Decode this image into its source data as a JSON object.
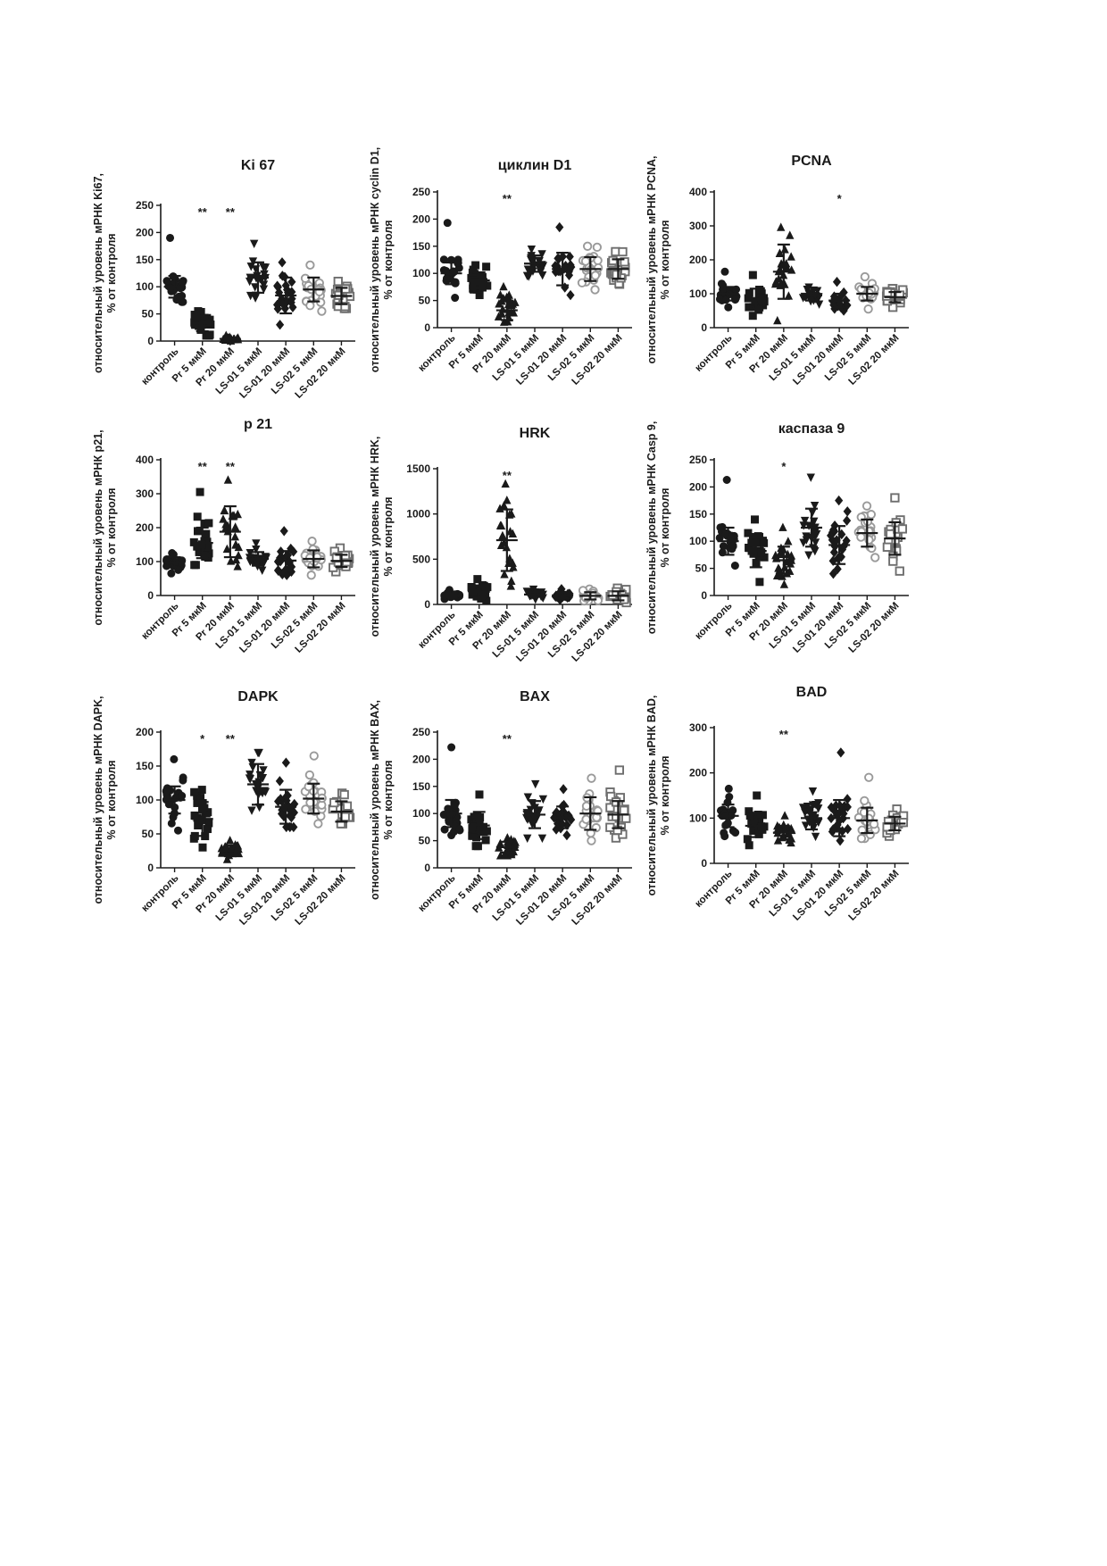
{
  "chart_data": [
    {
      "type": "scatter",
      "title": "Ki 67",
      "ylabel": [
        "относительный уровень мРНК Ki67,",
        "% от контроля"
      ],
      "categories": [
        "контроль",
        "Pr 5 мкМ",
        "Pr 20 мкМ",
        "LS-01 5 мкМ",
        "LS-01 20 мкМ",
        "LS-02 5 мкМ",
        "LS-02 20 мкМ"
      ],
      "ylim": [
        0,
        250
      ],
      "yticks": [
        0,
        50,
        100,
        150,
        200,
        250
      ],
      "series": [
        {
          "mean": 100,
          "sd": 20,
          "min": 72,
          "max": 190
        },
        {
          "mean": 32,
          "sd": 14,
          "min": 10,
          "max": 55
        },
        {
          "mean": 4,
          "sd": 2,
          "min": 0,
          "max": 10
        },
        {
          "mean": 117,
          "sd": 28,
          "min": 80,
          "max": 180
        },
        {
          "mean": 84,
          "sd": 33,
          "min": 30,
          "max": 145
        },
        {
          "mean": 95,
          "sd": 22,
          "min": 55,
          "max": 140
        },
        {
          "mean": 83,
          "sd": 15,
          "min": 60,
          "max": 110
        }
      ],
      "significance": [
        "",
        "**",
        "**",
        "",
        "",
        "",
        ""
      ]
    },
    {
      "type": "scatter",
      "title": "циклин D1",
      "ylabel": [
        "относительный уровень мРНК cyclin D1,",
        "% от контроля"
      ],
      "categories": [
        "контроль",
        "Pr 5 мкМ",
        "Pr 20 мкМ",
        "LS-01 5 мкМ",
        "LS-01 20 мкМ",
        "LS-02 5 мкМ",
        "LS-02 20 мкМ"
      ],
      "ylim": [
        0,
        250
      ],
      "yticks": [
        0,
        50,
        100,
        150,
        200,
        250
      ],
      "series": [
        {
          "mean": 100,
          "sd": 20,
          "min": 55,
          "max": 193
        },
        {
          "mean": 87,
          "sd": 15,
          "min": 60,
          "max": 115
        },
        {
          "mean": 32,
          "sd": 18,
          "min": 10,
          "max": 75
        },
        {
          "mean": 118,
          "sd": 15,
          "min": 95,
          "max": 145
        },
        {
          "mean": 108,
          "sd": 30,
          "min": 60,
          "max": 185
        },
        {
          "mean": 108,
          "sd": 22,
          "min": 70,
          "max": 150
        },
        {
          "mean": 108,
          "sd": 18,
          "min": 80,
          "max": 140
        }
      ],
      "significance": [
        "",
        "",
        "**",
        "",
        "",
        "",
        ""
      ]
    },
    {
      "type": "scatter",
      "title": "PCNA",
      "ylabel": [
        "относительный уровень мРНК PCNA,",
        "% от контроля"
      ],
      "categories": [
        "контроль",
        "Pr 5 мкМ",
        "Pr 20 мкМ",
        "LS-01 5 мкМ",
        "LS-01 20 мкМ",
        "LS-02 5 мкМ",
        "LS-02 20 мкМ"
      ],
      "ylim": [
        0,
        400
      ],
      "yticks": [
        0,
        100,
        200,
        300,
        400
      ],
      "series": [
        {
          "mean": 100,
          "sd": 20,
          "min": 60,
          "max": 165
        },
        {
          "mean": 85,
          "sd": 30,
          "min": 35,
          "max": 155
        },
        {
          "mean": 165,
          "sd": 80,
          "min": 20,
          "max": 295
        },
        {
          "mean": 95,
          "sd": 15,
          "min": 70,
          "max": 120
        },
        {
          "mean": 80,
          "sd": 20,
          "min": 50,
          "max": 135
        },
        {
          "mean": 100,
          "sd": 20,
          "min": 55,
          "max": 150
        },
        {
          "mean": 90,
          "sd": 15,
          "min": 60,
          "max": 115
        }
      ],
      "significance": [
        "",
        "",
        "",
        "",
        "*",
        "",
        ""
      ]
    },
    {
      "type": "scatter",
      "title": "p 21",
      "ylabel": [
        "относительный уровень мРНК p21,",
        "% от контроля"
      ],
      "categories": [
        "контроль",
        "Pr 5 мкМ",
        "Pr 20 мкМ",
        "LS-01 5 мкМ",
        "LS-01 20 мкМ",
        "LS-02 5 мкМ",
        "LS-02 20 мкМ"
      ],
      "ylim": [
        0,
        400
      ],
      "yticks": [
        0,
        100,
        200,
        300,
        400
      ],
      "series": [
        {
          "mean": 98,
          "sd": 15,
          "min": 65,
          "max": 125
        },
        {
          "mean": 155,
          "sd": 45,
          "min": 90,
          "max": 305
        },
        {
          "mean": 188,
          "sd": 75,
          "min": 85,
          "max": 340
        },
        {
          "mean": 108,
          "sd": 20,
          "min": 75,
          "max": 155
        },
        {
          "mean": 103,
          "sd": 28,
          "min": 60,
          "max": 190
        },
        {
          "mean": 108,
          "sd": 25,
          "min": 60,
          "max": 160
        },
        {
          "mean": 102,
          "sd": 18,
          "min": 70,
          "max": 140
        }
      ],
      "significance": [
        "",
        "**",
        "**",
        "",
        "",
        "",
        ""
      ]
    },
    {
      "type": "scatter",
      "title": "HRK",
      "ylabel": [
        "относительный уровень мРНК HRK,",
        "% от контроля"
      ],
      "categories": [
        "контроль",
        "Pr 5 мкМ",
        "Pr 20 мкМ",
        "LS-01 5 мкМ",
        "LS-01 20 мкМ",
        "LS-02 5 мкМ",
        "LS-02 20 мкМ"
      ],
      "ylim": [
        0,
        1500
      ],
      "yticks": [
        0,
        500,
        1000,
        1500
      ],
      "series": [
        {
          "mean": 100,
          "sd": 20,
          "min": 60,
          "max": 160
        },
        {
          "mean": 140,
          "sd": 60,
          "min": 40,
          "max": 280
        },
        {
          "mean": 710,
          "sd": 340,
          "min": 200,
          "max": 1330
        },
        {
          "mean": 110,
          "sd": 25,
          "min": 60,
          "max": 170
        },
        {
          "mean": 100,
          "sd": 30,
          "min": 50,
          "max": 170
        },
        {
          "mean": 95,
          "sd": 40,
          "min": 40,
          "max": 170
        },
        {
          "mean": 95,
          "sd": 50,
          "min": 20,
          "max": 180
        }
      ],
      "significance": [
        "",
        "",
        "**",
        "",
        "",
        "",
        ""
      ]
    },
    {
      "type": "scatter",
      "title": "каспаза 9",
      "ylabel": [
        "относительный уровень мРНК Casp 9,",
        "% от контроля"
      ],
      "categories": [
        "контроль",
        "Pr 5 мкМ",
        "Pr 20 мкМ",
        "LS-01 5 мкМ",
        "LS-01 20 мкМ",
        "LS-02 5 мкМ",
        "LS-02 20 мкМ"
      ],
      "ylim": [
        0,
        250
      ],
      "yticks": [
        0,
        50,
        100,
        150,
        200,
        250
      ],
      "series": [
        {
          "mean": 100,
          "sd": 25,
          "min": 55,
          "max": 213
        },
        {
          "mean": 82,
          "sd": 30,
          "min": 25,
          "max": 140
        },
        {
          "mean": 65,
          "sd": 25,
          "min": 20,
          "max": 125
        },
        {
          "mean": 125,
          "sd": 35,
          "min": 75,
          "max": 218
        },
        {
          "mean": 93,
          "sd": 35,
          "min": 40,
          "max": 175
        },
        {
          "mean": 115,
          "sd": 25,
          "min": 70,
          "max": 165
        },
        {
          "mean": 105,
          "sd": 30,
          "min": 45,
          "max": 180
        }
      ],
      "significance": [
        "",
        "",
        "*",
        "",
        "",
        "",
        ""
      ]
    },
    {
      "type": "scatter",
      "title": "DAPK",
      "ylabel": [
        "относительный уровень мРНК DAPK,",
        "% от контроля"
      ],
      "categories": [
        "контроль",
        "Pr 5 мкМ",
        "Pr 20 мкМ",
        "LS-01 5 мкМ",
        "LS-01 20 мкМ",
        "LS-02 5 мкМ",
        "LS-02 20 мкМ"
      ],
      "ylim": [
        0,
        200
      ],
      "yticks": [
        0,
        50,
        100,
        150,
        200
      ],
      "series": [
        {
          "mean": 100,
          "sd": 20,
          "min": 55,
          "max": 160
        },
        {
          "mean": 72,
          "sd": 25,
          "min": 30,
          "max": 115
        },
        {
          "mean": 25,
          "sd": 8,
          "min": 12,
          "max": 40
        },
        {
          "mean": 123,
          "sd": 30,
          "min": 85,
          "max": 170
        },
        {
          "mean": 90,
          "sd": 25,
          "min": 60,
          "max": 155
        },
        {
          "mean": 102,
          "sd": 22,
          "min": 65,
          "max": 165
        },
        {
          "mean": 83,
          "sd": 15,
          "min": 65,
          "max": 110
        }
      ],
      "significance": [
        "",
        "*",
        "**",
        "",
        "",
        "",
        ""
      ]
    },
    {
      "type": "scatter",
      "title": "BAX",
      "ylabel": [
        "относительный уровень мРНК BAX,",
        "% от контроля"
      ],
      "categories": [
        "контроль",
        "Pr 5 мкМ",
        "Pr 20 мкМ",
        "LS-01 5 мкМ",
        "LS-01 20 мкМ",
        "LS-02 5 мкМ",
        "LS-02 20 мкМ"
      ],
      "ylim": [
        0,
        250
      ],
      "yticks": [
        0,
        50,
        100,
        150,
        200,
        250
      ],
      "series": [
        {
          "mean": 100,
          "sd": 25,
          "min": 60,
          "max": 222
        },
        {
          "mean": 78,
          "sd": 25,
          "min": 40,
          "max": 135
        },
        {
          "mean": 38,
          "sd": 10,
          "min": 22,
          "max": 55
        },
        {
          "mean": 98,
          "sd": 25,
          "min": 55,
          "max": 155
        },
        {
          "mean": 93,
          "sd": 20,
          "min": 60,
          "max": 145
        },
        {
          "mean": 100,
          "sd": 30,
          "min": 50,
          "max": 165
        },
        {
          "mean": 98,
          "sd": 25,
          "min": 55,
          "max": 180
        }
      ],
      "significance": [
        "",
        "",
        "**",
        "",
        "",
        "",
        ""
      ]
    },
    {
      "type": "scatter",
      "title": "BAD",
      "ylabel": [
        "относительный уровень мРНК BAD,",
        "% от контроля"
      ],
      "categories": [
        "контроль",
        "Pr 5 мкМ",
        "Pr 20 мкМ",
        "LS-01 5 мкМ",
        "LS-01 20 мкМ",
        "LS-02 5 мкМ",
        "LS-02 20 мкМ"
      ],
      "ylim": [
        0,
        300
      ],
      "yticks": [
        0,
        100,
        200,
        300
      ],
      "series": [
        {
          "mean": 105,
          "sd": 25,
          "min": 60,
          "max": 165
        },
        {
          "mean": 83,
          "sd": 25,
          "min": 40,
          "max": 150
        },
        {
          "mean": 68,
          "sd": 15,
          "min": 45,
          "max": 105
        },
        {
          "mean": 100,
          "sd": 25,
          "min": 60,
          "max": 160
        },
        {
          "mean": 100,
          "sd": 40,
          "min": 50,
          "max": 245
        },
        {
          "mean": 95,
          "sd": 28,
          "min": 55,
          "max": 190
        },
        {
          "mean": 88,
          "sd": 15,
          "min": 60,
          "max": 120
        }
      ],
      "significance": [
        "",
        "",
        "**",
        "",
        "",
        "",
        ""
      ]
    }
  ],
  "series_style": [
    {
      "marker": "circle",
      "color": "#1a1a1a",
      "filled": true
    },
    {
      "marker": "square",
      "color": "#1a1a1a",
      "filled": true
    },
    {
      "marker": "triangle",
      "color": "#1a1a1a",
      "filled": true
    },
    {
      "marker": "triangle-down",
      "color": "#1a1a1a",
      "filled": true
    },
    {
      "marker": "diamond",
      "color": "#1a1a1a",
      "filled": true
    },
    {
      "marker": "circle",
      "color": "#9a9a9a",
      "filled": false
    },
    {
      "marker": "square",
      "color": "#6e6e6e",
      "filled": false
    }
  ]
}
